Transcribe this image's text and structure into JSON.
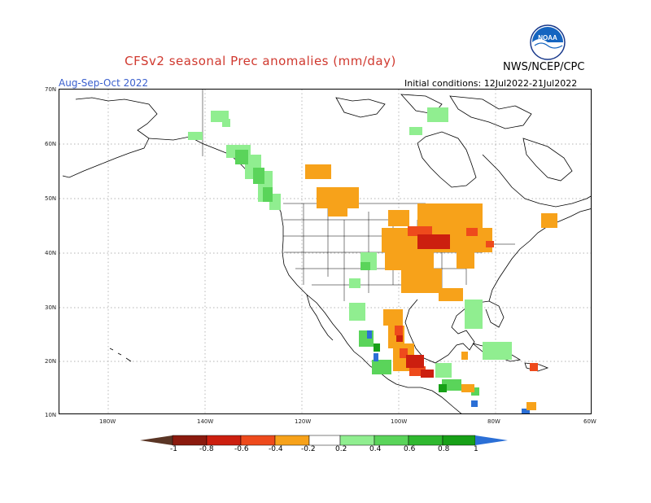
{
  "header": {
    "title": "CFSv2 seasonal Prec anomalies (mm/day)",
    "period": "Aug-Sep-Oct 2022",
    "agency": "NWS/NCEP/CPC",
    "initial_conditions": "Initial conditions: 12Jul2022-21Jul2022",
    "logo_text": "NOAA"
  },
  "axes": {
    "lat_labels": [
      "70N",
      "60N",
      "50N",
      "40N",
      "30N",
      "20N",
      "10N"
    ],
    "lon_labels": [
      "180W",
      "140W",
      "120W",
      "100W",
      "80W",
      "60W"
    ]
  },
  "colorbar": {
    "labels": [
      "-1",
      "-0.8",
      "-0.6",
      "-0.4",
      "-0.2",
      "0.2",
      "0.4",
      "0.6",
      "0.8",
      "1"
    ],
    "colors": {
      "below_min": "#5a3525",
      "bins": [
        "#8b1a0e",
        "#cc1f0f",
        "#ee4a1c",
        "#f28a18",
        "#f7a21a",
        "#ffffff",
        "#90ee90",
        "#5ad45a",
        "#2fb82f",
        "#17a017",
        "#0e8a0e"
      ],
      "above_max": "#2b6fd6"
    }
  },
  "legend_colors": {
    "dry_strong": "#cc1f0f",
    "dry_moderate": "#f7a21a",
    "wet_light": "#90ee90",
    "wet_moderate": "#5ad45a",
    "wet_strong": "#17a017",
    "wet_extreme": "#2b6fd6"
  }
}
